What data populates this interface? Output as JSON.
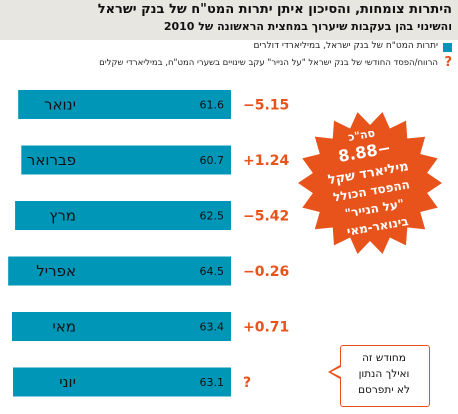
{
  "header": {
    "title": "היתרות צומחות, והסיכון איתן יתרות המט\"ח של בנק ישראל",
    "subtitle": "והשינוי בהן בעקבות שיערוך במחצית הראשונה של 2010"
  },
  "legend": {
    "balances": "יתרות המט\"ח של בנק ישראל, במיליארדי דולרים",
    "change": "הרווח/הפסד החודשי של בנק ישראל \"על הנייר\" עקב שינויים בשערי המט\"ח, במיליארדי שקלים",
    "change_marker": "?"
  },
  "colors": {
    "bar": "#0096b7",
    "accent": "#e8531b",
    "header_bg": "#e8e6e1"
  },
  "chart_data": {
    "type": "bar",
    "orientation": "horizontal",
    "title": "היתרות צומחות, והסיכון איתן יתרות המט\"ח של בנק ישראל",
    "subtitle": "והשינוי בהן בעקבות שיערוך במחצית הראשונה של 2010",
    "categories": [
      "ינואר",
      "פברואר",
      "מרץ",
      "אפריל",
      "מאי",
      "יוני"
    ],
    "series": [
      {
        "name": "יתרות המט\"ח של בנק ישראל, במיליארדי דולרים",
        "values": [
          61.6,
          60.7,
          62.5,
          64.5,
          63.4,
          63.1
        ],
        "labels": [
          "61.6",
          "60.7",
          "62.5",
          "64.5",
          "63.4",
          "63.1"
        ]
      },
      {
        "name": "הרווח/הפסד החודשי של בנק ישראל \"על הנייר\" עקב שינויים בשערי המט\"ח, במיליארדי שקלים",
        "values": [
          -5.15,
          1.24,
          -5.42,
          -0.26,
          0.71,
          null
        ],
        "labels": [
          "−5.15",
          "+1.24",
          "−5.42",
          "−0.26",
          "+0.71",
          "?"
        ]
      }
    ],
    "legend_position": "top-right",
    "grid": false
  },
  "burst": {
    "lines": [
      "סה\"כ",
      "−8.88",
      "מיליארד שקל",
      "ההפסד הכולל",
      "\"על הנייר\"",
      "בינואר-מאי"
    ]
  },
  "callout": {
    "lines": [
      "מחודש זה",
      "ואילך הנתון",
      "לא יתפרסם"
    ]
  }
}
